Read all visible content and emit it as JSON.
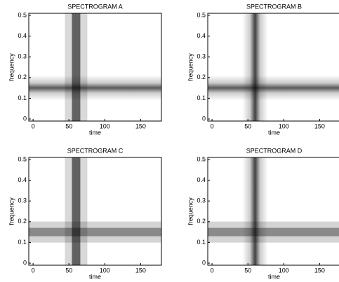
{
  "chart_data": [
    {
      "type": "spectrogram",
      "title": "SPECTROGRAM A",
      "xlabel": "time",
      "ylabel": "frequency",
      "xlim": [
        -6,
        179
      ],
      "ylim": [
        -0.01,
        0.51
      ],
      "xticks": [
        0,
        50,
        100,
        150
      ],
      "yticks": [
        0,
        0.1,
        0.2,
        0.3,
        0.4,
        0.5
      ],
      "peak_time": 60,
      "peak_frequency": 0.15,
      "time_band": "blocky",
      "frequency_band": "smooth"
    },
    {
      "type": "spectrogram",
      "title": "SPECTROGRAM B",
      "xlabel": "time",
      "ylabel": "frequency",
      "xlim": [
        -6,
        179
      ],
      "ylim": [
        -0.01,
        0.51
      ],
      "xticks": [
        0,
        50,
        100,
        150
      ],
      "yticks": [
        0,
        0.1,
        0.2,
        0.3,
        0.4,
        0.5
      ],
      "peak_time": 60,
      "peak_frequency": 0.15,
      "time_band": "smooth",
      "frequency_band": "smooth"
    },
    {
      "type": "spectrogram",
      "title": "SPECTROGRAM C",
      "xlabel": "time",
      "ylabel": "frequency",
      "xlim": [
        -6,
        179
      ],
      "ylim": [
        -0.01,
        0.51
      ],
      "xticks": [
        0,
        50,
        100,
        150
      ],
      "yticks": [
        0,
        0.1,
        0.2,
        0.3,
        0.4,
        0.5
      ],
      "peak_time": 60,
      "peak_frequency": 0.15,
      "time_band": "blocky",
      "frequency_band": "blocky"
    },
    {
      "type": "spectrogram",
      "title": "SPECTROGRAM D",
      "xlabel": "time",
      "ylabel": "frequency",
      "xlim": [
        -6,
        179
      ],
      "ylim": [
        -0.01,
        0.51
      ],
      "xticks": [
        0,
        50,
        100,
        150
      ],
      "yticks": [
        0,
        0.1,
        0.2,
        0.3,
        0.4,
        0.5
      ],
      "peak_time": 60,
      "peak_frequency": 0.15,
      "time_band": "smooth",
      "frequency_band": "blocky"
    }
  ]
}
